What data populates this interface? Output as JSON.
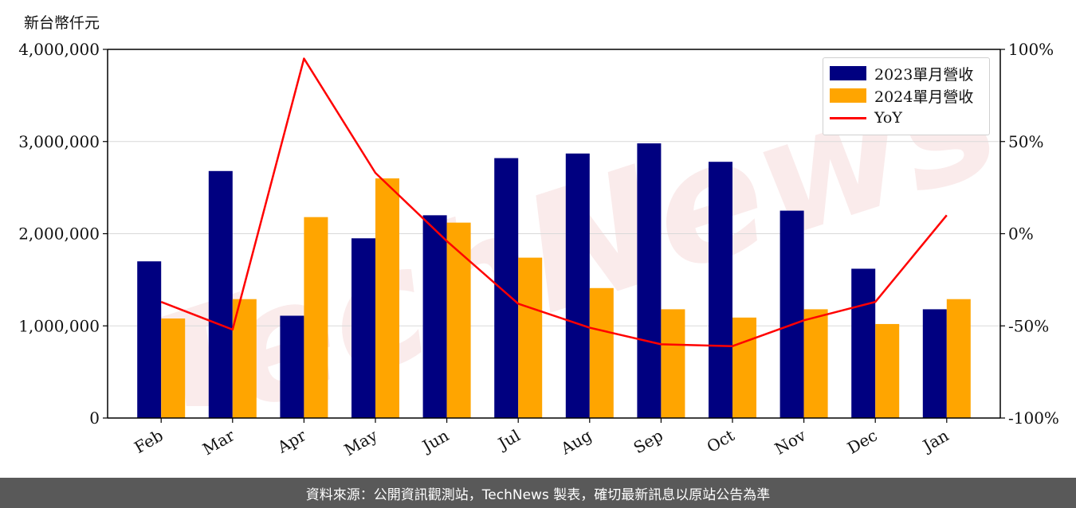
{
  "chart_data": {
    "type": "bar",
    "unit_label": "新台幣仟元",
    "categories": [
      "Feb",
      "Mar",
      "Apr",
      "May",
      "Jun",
      "Jul",
      "Aug",
      "Sep",
      "Oct",
      "Nov",
      "Dec",
      "Jan"
    ],
    "series": [
      {
        "name": "2023單月營收",
        "type": "bar",
        "color": "#000080",
        "values": [
          1700000,
          2680000,
          1110000,
          1950000,
          2200000,
          2820000,
          2870000,
          2980000,
          2780000,
          2250000,
          1620000,
          1180000
        ]
      },
      {
        "name": "2024單月營收",
        "type": "bar",
        "color": "#FFA500",
        "values": [
          1080000,
          1290000,
          2180000,
          2600000,
          2120000,
          1740000,
          1410000,
          1180000,
          1090000,
          1180000,
          1020000,
          1290000
        ]
      },
      {
        "name": "YoY",
        "type": "line",
        "axis": "right",
        "color": "#FF0000",
        "values": [
          -37,
          -52,
          95,
          33,
          -4,
          -38,
          -51,
          -60,
          -61,
          -47,
          -37,
          10
        ]
      }
    ],
    "y_left": {
      "lim": [
        0,
        4000000
      ],
      "ticks": [
        0,
        1000000,
        2000000,
        3000000,
        4000000
      ],
      "tick_labels": [
        "0",
        "1,000,000",
        "2,000,000",
        "3,000,000",
        "4,000,000"
      ]
    },
    "y_right": {
      "lim": [
        -100,
        100
      ],
      "ticks": [
        -100,
        -50,
        0,
        50,
        100
      ],
      "tick_labels": [
        "-100%",
        "-50%",
        "0%",
        "50%",
        "100%"
      ]
    },
    "grid": "horizontal",
    "legend_position": "top-right"
  },
  "watermark": "TechNews",
  "footer": {
    "text": "資料來源：公開資訊觀測站，TechNews 製表，確切最新訊息以原站公告為準"
  }
}
